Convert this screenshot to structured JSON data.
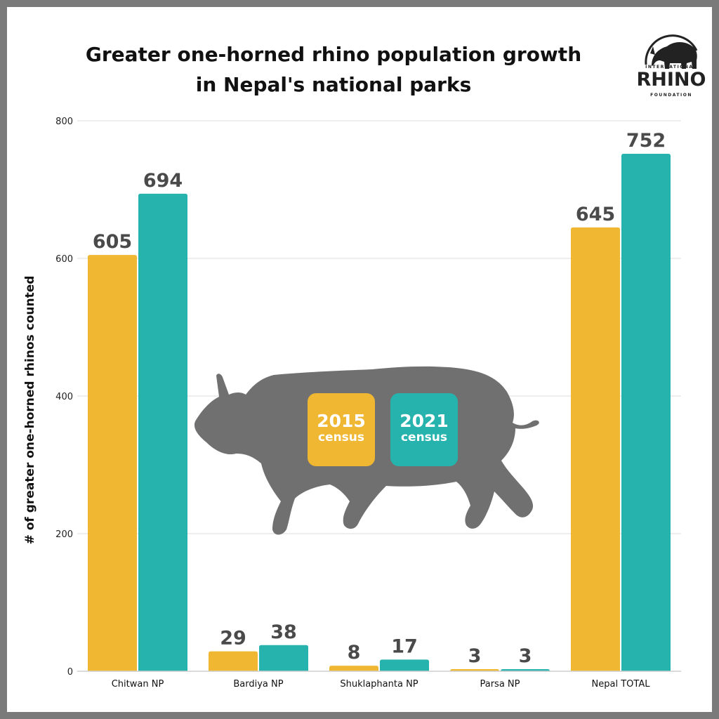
{
  "title_line1": "Greater one-horned rhino population growth",
  "title_line2": "in Nepal's national parks",
  "logo": {
    "top_text": "INTERNATIONAL",
    "main_text": "RHINO",
    "bottom_text": "FOUNDATION"
  },
  "legend": {
    "year_2015": "2015",
    "year_2021": "2021",
    "sub": "census"
  },
  "colors": {
    "series_2015": "#f0b732",
    "series_2021": "#26b3ad",
    "silhouette": "#6f706f",
    "grid": "#dcdcdc",
    "value_label": "#4a4a4a"
  },
  "chart_data": {
    "type": "bar",
    "title": "Greater one-horned rhino population growth in Nepal's national parks",
    "xlabel": "",
    "ylabel": "# of greater one-horned rhinos counted",
    "ylim": [
      0,
      800
    ],
    "yticks": [
      0,
      200,
      400,
      600,
      800
    ],
    "grid": true,
    "legend_placement": "center",
    "categories": [
      "Chitwan NP",
      "Bardiya NP",
      "Shuklaphanta NP",
      "Parsa NP",
      "Nepal TOTAL"
    ],
    "series": [
      {
        "name": "2015 census",
        "values": [
          605,
          29,
          8,
          3,
          645
        ]
      },
      {
        "name": "2021 census",
        "values": [
          694,
          38,
          17,
          3,
          752
        ]
      }
    ]
  }
}
